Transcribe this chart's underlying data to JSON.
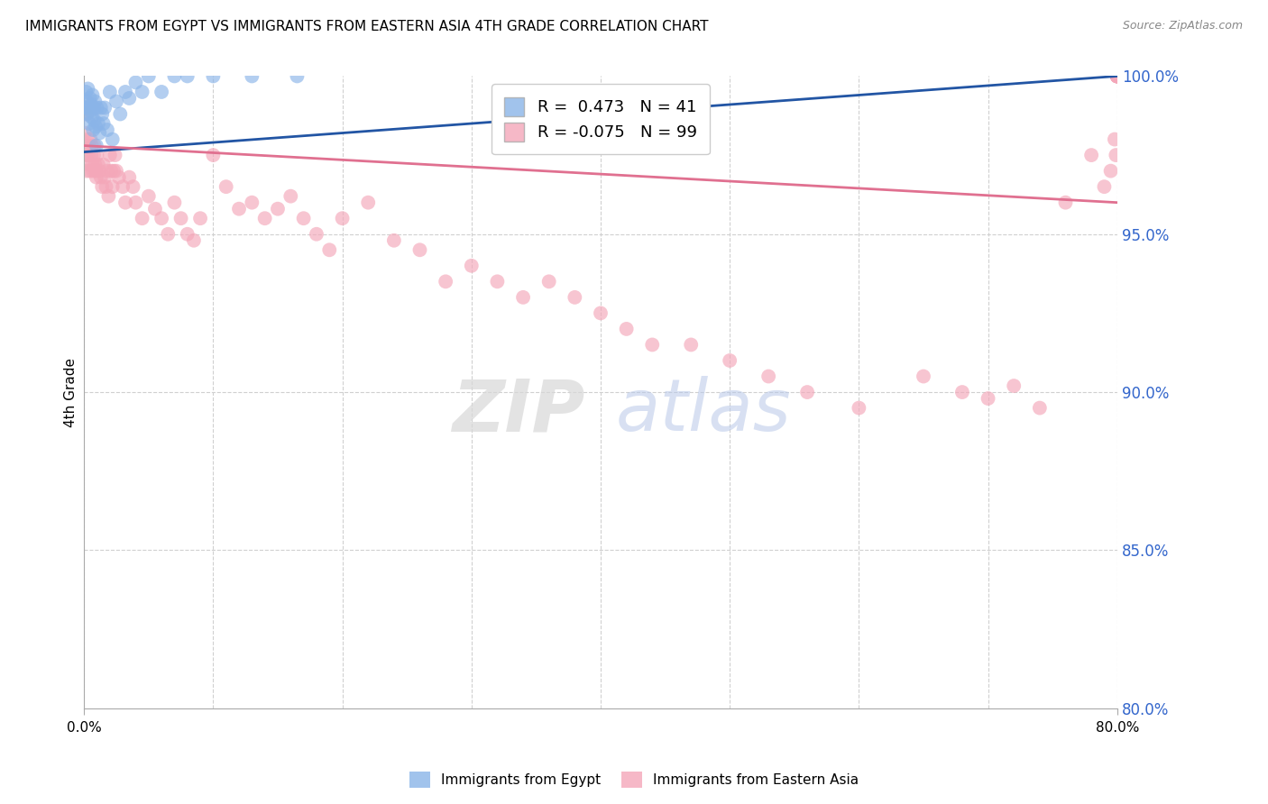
{
  "title": "IMMIGRANTS FROM EGYPT VS IMMIGRANTS FROM EASTERN ASIA 4TH GRADE CORRELATION CHART",
  "source": "Source: ZipAtlas.com",
  "ylabel": "4th Grade",
  "y_ticks_right": [
    80.0,
    85.0,
    90.0,
    95.0,
    100.0
  ],
  "xlim": [
    0.0,
    80.0
  ],
  "ylim": [
    80.0,
    100.0
  ],
  "R_egypt": 0.473,
  "N_egypt": 41,
  "R_eastern_asia": -0.075,
  "N_eastern_asia": 99,
  "blue_color": "#8ab4e8",
  "pink_color": "#f4a7b9",
  "blue_line_color": "#2255a4",
  "pink_line_color": "#e07090",
  "legend_label_egypt": "Immigrants from Egypt",
  "legend_label_eastern_asia": "Immigrants from Eastern Asia",
  "egypt_x": [
    0.1,
    0.15,
    0.2,
    0.25,
    0.3,
    0.35,
    0.4,
    0.45,
    0.5,
    0.55,
    0.6,
    0.65,
    0.7,
    0.75,
    0.8,
    0.85,
    0.9,
    0.95,
    1.0,
    1.1,
    1.2,
    1.3,
    1.4,
    1.5,
    1.6,
    1.8,
    2.0,
    2.2,
    2.5,
    2.8,
    3.2,
    3.5,
    4.0,
    4.5,
    5.0,
    6.0,
    7.0,
    8.0,
    10.0,
    13.0,
    16.5
  ],
  "egypt_y": [
    99.0,
    99.5,
    99.2,
    98.8,
    99.6,
    99.0,
    98.5,
    99.3,
    98.9,
    99.1,
    98.7,
    99.4,
    98.3,
    99.0,
    98.6,
    99.2,
    98.4,
    97.8,
    99.0,
    98.5,
    98.2,
    99.0,
    98.8,
    98.5,
    99.0,
    98.3,
    99.5,
    98.0,
    99.2,
    98.8,
    99.5,
    99.3,
    99.8,
    99.5,
    100.0,
    99.5,
    100.0,
    100.0,
    100.0,
    100.0,
    100.0
  ],
  "eastern_asia_x": [
    0.05,
    0.1,
    0.15,
    0.2,
    0.25,
    0.3,
    0.35,
    0.4,
    0.45,
    0.5,
    0.55,
    0.6,
    0.65,
    0.7,
    0.75,
    0.8,
    0.85,
    0.9,
    0.95,
    1.0,
    1.1,
    1.2,
    1.3,
    1.4,
    1.5,
    1.6,
    1.7,
    1.8,
    1.9,
    2.0,
    2.1,
    2.2,
    2.3,
    2.4,
    2.5,
    2.7,
    3.0,
    3.2,
    3.5,
    3.8,
    4.0,
    4.5,
    5.0,
    5.5,
    6.0,
    6.5,
    7.0,
    7.5,
    8.0,
    8.5,
    9.0,
    10.0,
    11.0,
    12.0,
    13.0,
    14.0,
    15.0,
    16.0,
    17.0,
    18.0,
    19.0,
    20.0,
    22.0,
    24.0,
    26.0,
    28.0,
    30.0,
    32.0,
    34.0,
    36.0,
    38.0,
    40.0,
    42.0,
    44.0,
    47.0,
    50.0,
    53.0,
    56.0,
    60.0,
    65.0,
    68.0,
    70.0,
    72.0,
    74.0,
    76.0,
    78.0,
    79.0,
    79.5,
    79.8,
    79.9,
    80.0,
    80.0,
    80.0,
    80.0,
    80.0,
    80.0,
    80.0,
    80.0,
    80.0
  ],
  "eastern_asia_y": [
    98.2,
    97.5,
    98.8,
    97.0,
    98.0,
    97.5,
    97.8,
    97.2,
    97.0,
    98.0,
    97.5,
    97.8,
    97.2,
    97.0,
    97.5,
    97.8,
    97.2,
    97.0,
    96.8,
    97.5,
    97.2,
    97.0,
    96.8,
    96.5,
    97.2,
    96.8,
    96.5,
    97.0,
    96.2,
    97.5,
    97.0,
    96.5,
    97.0,
    97.5,
    97.0,
    96.8,
    96.5,
    96.0,
    96.8,
    96.5,
    96.0,
    95.5,
    96.2,
    95.8,
    95.5,
    95.0,
    96.0,
    95.5,
    95.0,
    94.8,
    95.5,
    97.5,
    96.5,
    95.8,
    96.0,
    95.5,
    95.8,
    96.2,
    95.5,
    95.0,
    94.5,
    95.5,
    96.0,
    94.8,
    94.5,
    93.5,
    94.0,
    93.5,
    93.0,
    93.5,
    93.0,
    92.5,
    92.0,
    91.5,
    91.5,
    91.0,
    90.5,
    90.0,
    89.5,
    90.5,
    90.0,
    89.8,
    90.2,
    89.5,
    96.0,
    97.5,
    96.5,
    97.0,
    98.0,
    97.5,
    100.0,
    100.0,
    100.0,
    100.0,
    100.0,
    100.0,
    100.0,
    100.0,
    100.0
  ],
  "egypt_trendline_x": [
    0.0,
    80.0
  ],
  "egypt_trendline_y": [
    97.6,
    100.0
  ],
  "eastern_asia_trendline_x": [
    0.0,
    80.0
  ],
  "eastern_asia_trendline_y": [
    97.8,
    96.0
  ]
}
